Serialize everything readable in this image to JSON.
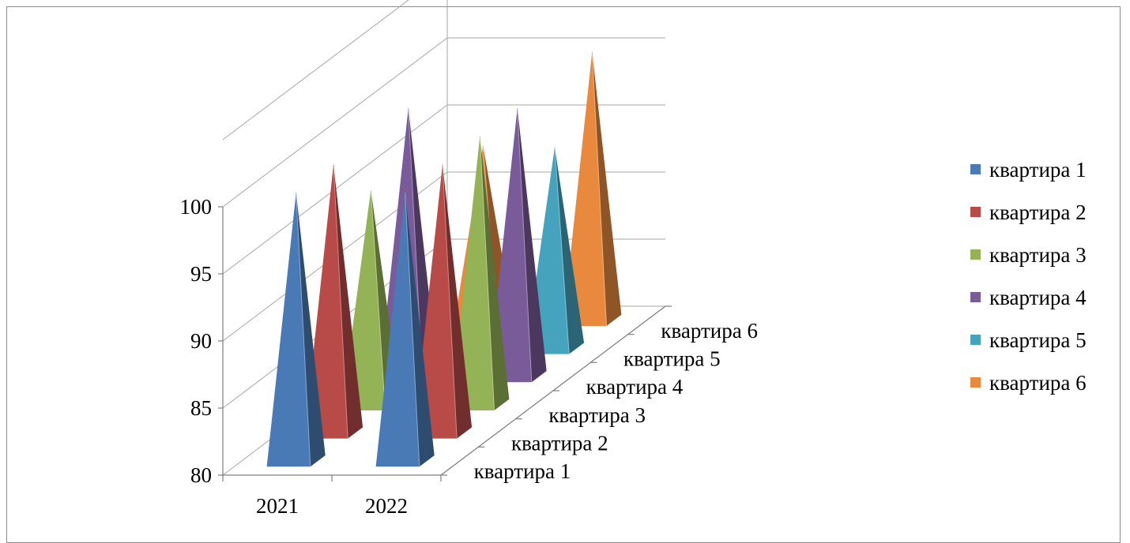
{
  "chart_data": {
    "type": "bar",
    "subtype": "3d-pyramid",
    "title": "",
    "xlabel": "",
    "ylabel": "",
    "categories": [
      "2021",
      "2022"
    ],
    "ylim": [
      80,
      100
    ],
    "yticks": [
      80,
      85,
      90,
      95,
      100
    ],
    "grid": true,
    "legend_position": "right",
    "series": [
      {
        "name": "квартира 1",
        "color": "#4a7ab5",
        "values": [
          100,
          100
        ]
      },
      {
        "name": "квартира 2",
        "color": "#b84a47",
        "values": [
          100,
          100
        ]
      },
      {
        "name": "квартира 3",
        "color": "#93b356",
        "values": [
          96,
          100
        ]
      },
      {
        "name": "квартира 4",
        "color": "#7a5b9a",
        "values": [
          100,
          100
        ]
      },
      {
        "name": "квартира 5",
        "color": "#45a3bd",
        "values": [
          82,
          95
        ]
      },
      {
        "name": "квартира 6",
        "color": "#e8893e",
        "values": [
          93,
          100
        ]
      }
    ]
  }
}
